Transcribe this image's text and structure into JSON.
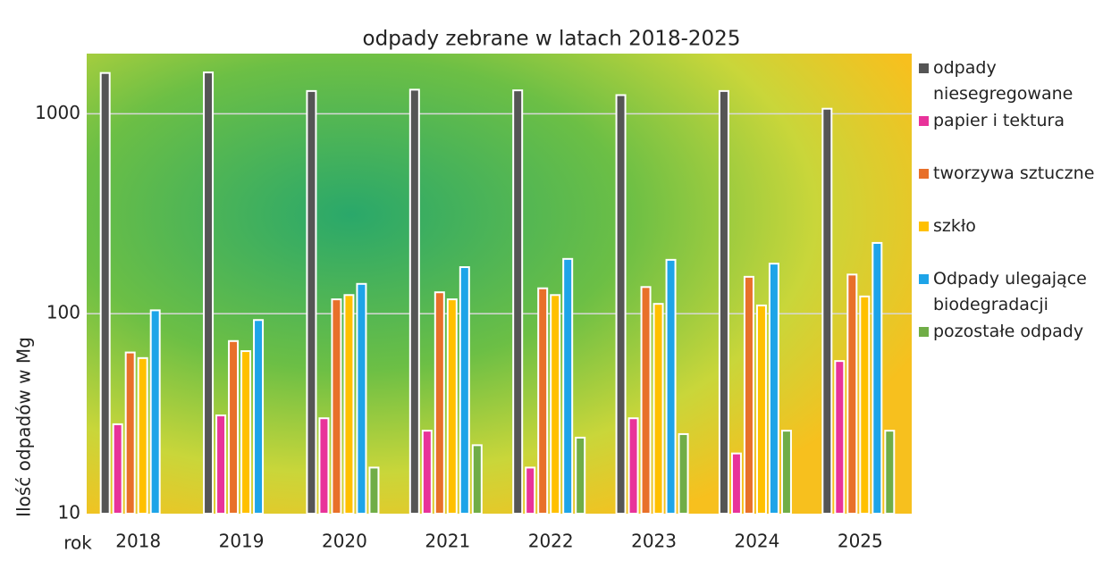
{
  "chart_data": {
    "type": "bar",
    "title": "odpady zebrane w latach 2018-2025",
    "y_label": "Ilość odpadów w Mg",
    "x_label": "rok",
    "categories": [
      "2018",
      "2019",
      "2020",
      "2021",
      "2022",
      "2023",
      "2024",
      "2025"
    ],
    "series": [
      {
        "name": "odpady niesegregowane",
        "color": "#555555",
        "values": [
          1600,
          1610,
          1300,
          1320,
          1310,
          1240,
          1300,
          1060
        ]
      },
      {
        "name": "papier i tektura",
        "color": "#e8339a",
        "values": [
          28,
          31,
          30,
          26,
          17,
          30,
          20,
          58
        ]
      },
      {
        "name": "tworzywa sztuczne",
        "color": "#e8702a",
        "values": [
          64,
          73,
          118,
          128,
          134,
          136,
          153,
          157
        ]
      },
      {
        "name": "szkło",
        "color": "#ffc000",
        "values": [
          60,
          65,
          124,
          118,
          124,
          112,
          110,
          122
        ]
      },
      {
        "name": "Odpady ulegające biodegradacji",
        "color": "#1ea4e8",
        "values": [
          104,
          93,
          141,
          171,
          188,
          186,
          178,
          226
        ]
      },
      {
        "name": "pozostałe odpady",
        "color": "#70ad47",
        "values": [
          null,
          null,
          17,
          22,
          24,
          25,
          26,
          26
        ]
      }
    ],
    "ylim": [
      10,
      2000
    ],
    "yticks": [
      10,
      100,
      1000
    ],
    "log_scale": true,
    "grid": true,
    "legend": "right"
  }
}
